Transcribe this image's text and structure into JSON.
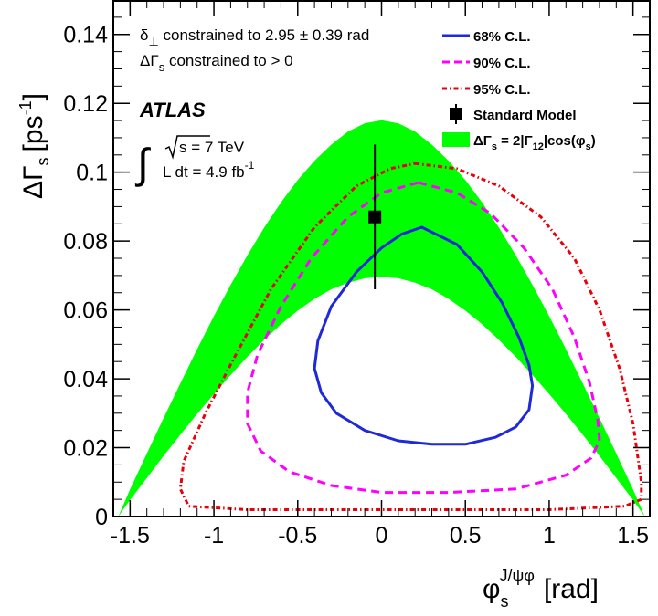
{
  "chart_data": {
    "type": "line",
    "xlabel": {
      "symbol": "φ",
      "sub": "s",
      "sup": "J/ψφ",
      "unit": "[rad]"
    },
    "ylabel": {
      "symbol": "ΔΓ",
      "sub": "s",
      "unit_open": "[ps",
      "unit_sup": "-1",
      "unit_close": "]"
    },
    "xlim": [
      -1.6,
      1.6
    ],
    "ylim": [
      0,
      0.15
    ],
    "x_ticks": [
      {
        "value": -1.5,
        "label": "-1.5"
      },
      {
        "value": -1,
        "label": "-1"
      },
      {
        "value": -0.5,
        "label": "-0.5"
      },
      {
        "value": 0,
        "label": "0"
      },
      {
        "value": 0.5,
        "label": "0.5"
      },
      {
        "value": 1,
        "label": "1"
      },
      {
        "value": 1.5,
        "label": "1.5"
      }
    ],
    "y_ticks": [
      {
        "value": 0,
        "label": "0"
      },
      {
        "value": 0.02,
        "label": "0.02"
      },
      {
        "value": 0.04,
        "label": "0.04"
      },
      {
        "value": 0.06,
        "label": "0.06"
      },
      {
        "value": 0.08,
        "label": "0.08"
      },
      {
        "value": 0.1,
        "label": "0.1"
      },
      {
        "value": 0.12,
        "label": "0.12"
      },
      {
        "value": 0.14,
        "label": "0.14"
      }
    ],
    "notes": {
      "line1_symbol": "δ",
      "line1_sub": "⊥",
      "line1_text": " constrained to 2.95 ± 0.39 rad",
      "line2_symbol": "ΔΓ",
      "line2_sub": "s",
      "line2_text": " constrained to > 0",
      "experiment": "ATLAS",
      "energy_text": "s = 7 TeV",
      "lumi_text": "L dt = 4.9 fb",
      "lumi_sup": "-1"
    },
    "legend": [
      {
        "key": "cl68",
        "label": "68% C.L.",
        "style": "solid",
        "color": "#1f2ad6"
      },
      {
        "key": "cl90",
        "label": "90% C.L.",
        "style": "dashed",
        "color": "#ff00ff"
      },
      {
        "key": "cl95",
        "label": "95% C.L.",
        "style": "dashdot",
        "color": "#e8000b"
      },
      {
        "key": "sm",
        "label": "Standard Model",
        "style": "marker",
        "color": "#000000"
      },
      {
        "key": "band",
        "label_main": "ΔΓ",
        "label_sub": "s",
        "label_mid": " = 2|Γ",
        "label_sub2": "12",
        "label_mid2": "|cos(φ",
        "label_sub3": "s",
        "label_end": ")",
        "style": "fill",
        "color": "#00ff00"
      }
    ],
    "band": {
      "x": [
        -1.57,
        -1.5,
        -1.4,
        -1.3,
        -1.2,
        -1.1,
        -1.0,
        -0.9,
        -0.8,
        -0.7,
        -0.6,
        -0.5,
        -0.4,
        -0.3,
        -0.2,
        -0.1,
        0.0,
        0.1,
        0.2,
        0.3,
        0.4,
        0.5,
        0.6,
        0.7,
        0.8,
        0.9,
        1.0,
        1.1,
        1.2,
        1.3,
        1.4,
        1.5,
        1.57
      ],
      "upper": [
        0.0,
        0.0079,
        0.0183,
        0.0286,
        0.0387,
        0.0486,
        0.0582,
        0.0673,
        0.0759,
        0.0839,
        0.0912,
        0.0977,
        0.1033,
        0.108,
        0.1118,
        0.1142,
        0.1151,
        0.1142,
        0.1118,
        0.108,
        0.1033,
        0.0977,
        0.0912,
        0.0839,
        0.0759,
        0.0673,
        0.0582,
        0.0486,
        0.0387,
        0.0286,
        0.0183,
        0.0079,
        0.0
      ],
      "lower": [
        0.0,
        0.0048,
        0.0112,
        0.0176,
        0.0238,
        0.0298,
        0.0356,
        0.0411,
        0.0464,
        0.0513,
        0.0558,
        0.0598,
        0.0632,
        0.066,
        0.0679,
        0.0692,
        0.0696,
        0.0692,
        0.0679,
        0.066,
        0.0632,
        0.0598,
        0.0558,
        0.0513,
        0.0464,
        0.0411,
        0.0356,
        0.0298,
        0.0238,
        0.0176,
        0.0112,
        0.0048,
        0.0
      ]
    },
    "series": [
      {
        "key": "cl68",
        "points": [
          [
            0.24,
            0.084
          ],
          [
            0.45,
            0.079
          ],
          [
            0.6,
            0.071
          ],
          [
            0.72,
            0.062
          ],
          [
            0.82,
            0.052
          ],
          [
            0.88,
            0.044
          ],
          [
            0.9,
            0.038
          ],
          [
            0.88,
            0.031
          ],
          [
            0.8,
            0.026
          ],
          [
            0.68,
            0.023
          ],
          [
            0.5,
            0.021
          ],
          [
            0.3,
            0.021
          ],
          [
            0.1,
            0.022
          ],
          [
            -0.1,
            0.025
          ],
          [
            -0.27,
            0.03
          ],
          [
            -0.36,
            0.036
          ],
          [
            -0.4,
            0.043
          ],
          [
            -0.38,
            0.051
          ],
          [
            -0.3,
            0.061
          ],
          [
            -0.15,
            0.071
          ],
          [
            0.0,
            0.078
          ],
          [
            0.12,
            0.082
          ],
          [
            0.24,
            0.084
          ]
        ]
      },
      {
        "key": "cl90",
        "points": [
          [
            0.22,
            0.097
          ],
          [
            0.45,
            0.094
          ],
          [
            0.65,
            0.088
          ],
          [
            0.85,
            0.078
          ],
          [
            1.02,
            0.066
          ],
          [
            1.15,
            0.052
          ],
          [
            1.24,
            0.039
          ],
          [
            1.29,
            0.028
          ],
          [
            1.3,
            0.022
          ],
          [
            1.25,
            0.017
          ],
          [
            1.1,
            0.012
          ],
          [
            0.8,
            0.008
          ],
          [
            0.4,
            0.007
          ],
          [
            0.0,
            0.007
          ],
          [
            -0.3,
            0.009
          ],
          [
            -0.55,
            0.013
          ],
          [
            -0.72,
            0.019
          ],
          [
            -0.8,
            0.027
          ],
          [
            -0.8,
            0.036
          ],
          [
            -0.74,
            0.047
          ],
          [
            -0.6,
            0.061
          ],
          [
            -0.42,
            0.075
          ],
          [
            -0.2,
            0.087
          ],
          [
            0.0,
            0.094
          ],
          [
            0.22,
            0.097
          ]
        ]
      },
      {
        "key": "cl95",
        "points": [
          [
            0.2,
            0.1025
          ],
          [
            0.45,
            0.101
          ],
          [
            0.7,
            0.096
          ],
          [
            0.95,
            0.087
          ],
          [
            1.15,
            0.075
          ],
          [
            1.3,
            0.06
          ],
          [
            1.42,
            0.043
          ],
          [
            1.5,
            0.027
          ],
          [
            1.55,
            0.01
          ],
          [
            1.55,
            0.005
          ],
          [
            1.45,
            0.003
          ],
          [
            1.0,
            0.002
          ],
          [
            0.0,
            0.002
          ],
          [
            -0.8,
            0.002
          ],
          [
            -1.15,
            0.003
          ],
          [
            -1.2,
            0.008
          ],
          [
            -1.18,
            0.016
          ],
          [
            -1.05,
            0.03
          ],
          [
            -0.88,
            0.046
          ],
          [
            -0.66,
            0.066
          ],
          [
            -0.4,
            0.084
          ],
          [
            -0.15,
            0.096
          ],
          [
            0.05,
            0.101
          ],
          [
            0.2,
            0.1025
          ]
        ]
      }
    ],
    "sm_point": {
      "x": -0.04,
      "y": 0.087,
      "err_low": 0.066,
      "err_high": 0.108
    }
  }
}
